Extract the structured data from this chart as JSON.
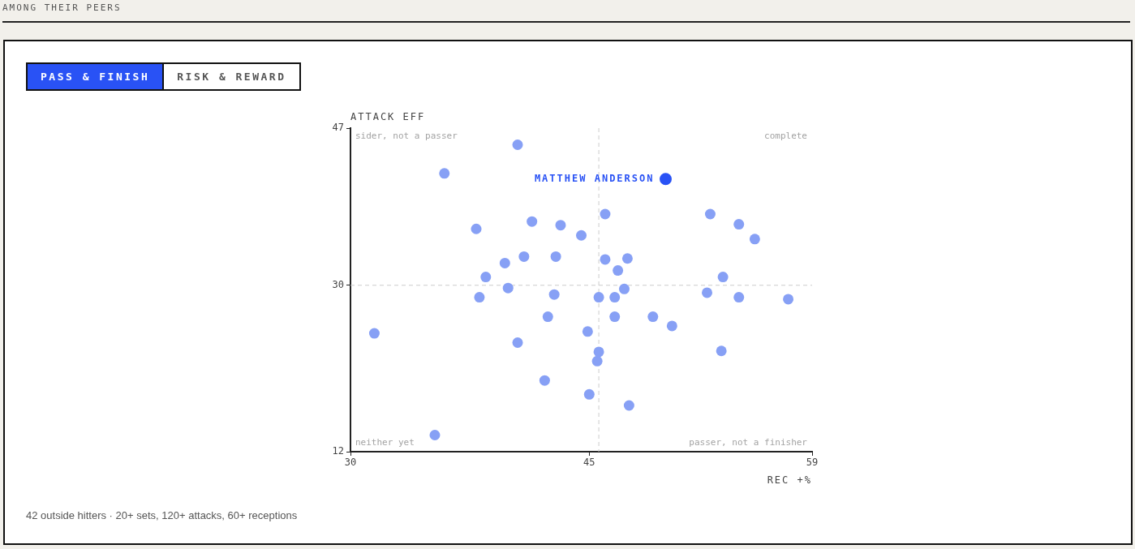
{
  "chart_data": {
    "type": "scatter",
    "title": "AMONG THEIR PEERS",
    "xlabel": "REC +%",
    "ylabel": "ATTACK EFF",
    "xlim": [
      30,
      59
    ],
    "xticks": [
      30,
      45,
      59
    ],
    "ylim": [
      12,
      47
    ],
    "yticks": [
      12,
      30,
      47
    ],
    "grid": false,
    "legend": false,
    "marker": "circle",
    "series": [
      {
        "color": "#87a0f5",
        "x": [
          31.5,
          35.3,
          35.9,
          37.9,
          38.1,
          38.5,
          39.7,
          39.9,
          40.5,
          40.5,
          40.9,
          41.4,
          42.2,
          42.4,
          42.8,
          42.9,
          43.2,
          44.5,
          44.9,
          45.0,
          45.5,
          45.6,
          45.6,
          46.0,
          46.0,
          46.6,
          46.6,
          46.8,
          47.2,
          47.4,
          47.5,
          49.0,
          50.2,
          52.4,
          52.6,
          53.3,
          53.4,
          54.4,
          54.4,
          55.4,
          57.5
        ],
        "values": [
          24.8,
          13.8,
          42.1,
          36.1,
          28.7,
          30.9,
          32.4,
          29.7,
          45.2,
          23.8,
          33.1,
          36.9,
          19.7,
          26.6,
          29.0,
          33.1,
          36.5,
          35.4,
          25.0,
          18.2,
          21.8,
          22.8,
          28.7,
          37.7,
          32.8,
          28.7,
          26.6,
          31.6,
          29.6,
          32.9,
          17.0,
          26.6,
          25.6,
          29.2,
          37.7,
          22.9,
          30.9,
          28.7,
          36.6,
          35.0,
          28.5
        ]
      },
      {
        "name": "MATTHEW ANDERSON",
        "color": "#2952f5",
        "x": [
          49.8
        ],
        "values": [
          41.5
        ]
      }
    ],
    "ref_lines": [
      {
        "axis": "x",
        "value": 45.6,
        "color": "#cccccc",
        "line_style": "dashed"
      },
      {
        "axis": "y",
        "value": 30,
        "color": "#cccccc",
        "line_style": "dashed"
      }
    ],
    "annotations": [
      "sider, not a passer",
      "complete",
      "neither yet",
      "passer, not a finisher",
      "42 outside hitters · 20+ sets, 120+ attacks, 60+ receptions",
      "PASS & FINISH",
      "RISK & REWARD"
    ]
  }
}
